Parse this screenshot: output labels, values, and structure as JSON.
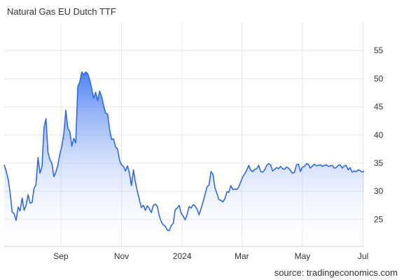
{
  "title": "Natural Gas EU Dutch TTF",
  "source": "source: tradingeconomics.com",
  "colors": {
    "line": "#2f6bdf",
    "area_top": "#2f6bf0",
    "area_bottom": "#ffffff",
    "grid": "#e6e6e6",
    "text": "#333333"
  },
  "chart_data": {
    "type": "area",
    "title": "Natural Gas EU Dutch TTF",
    "xlabel": "",
    "ylabel": "",
    "x_range": [
      "2023-07-06",
      "2024-07-02"
    ],
    "ylim": [
      20.2,
      60
    ],
    "grid": true,
    "legend": "none",
    "y_ticks": [
      25,
      30,
      35,
      40,
      45,
      50,
      55
    ],
    "x_ticks": [
      {
        "label": "Sep",
        "date": "2023-09-01"
      },
      {
        "label": "Nov",
        "date": "2023-11-01"
      },
      {
        "label": "2024",
        "date": "2024-01-01"
      },
      {
        "label": "Mar",
        "date": "2024-03-01"
      },
      {
        "label": "May",
        "date": "2024-05-01"
      },
      {
        "label": "Jul",
        "date": "2024-07-01"
      }
    ],
    "series": [
      {
        "x": [
          "2023-07-06",
          "2023-07-08",
          "2023-07-10",
          "2023-07-12",
          "2023-07-14",
          "2023-07-16",
          "2023-07-18",
          "2023-07-20",
          "2023-07-22",
          "2023-07-24",
          "2023-07-26",
          "2023-07-28",
          "2023-07-30",
          "2023-08-01",
          "2023-08-03",
          "2023-08-05",
          "2023-08-07",
          "2023-08-09",
          "2023-08-11",
          "2023-08-13",
          "2023-08-15",
          "2023-08-17",
          "2023-08-19",
          "2023-08-21",
          "2023-08-23",
          "2023-08-25",
          "2023-08-27",
          "2023-08-29",
          "2023-08-31",
          "2023-09-02",
          "2023-09-04",
          "2023-09-06",
          "2023-09-08",
          "2023-09-10",
          "2023-09-12",
          "2023-09-14",
          "2023-09-16",
          "2023-09-18",
          "2023-09-20",
          "2023-09-22",
          "2023-09-24",
          "2023-09-26",
          "2023-09-28",
          "2023-09-30",
          "2023-10-02",
          "2023-10-04",
          "2023-10-06",
          "2023-10-08",
          "2023-10-10",
          "2023-10-12",
          "2023-10-14",
          "2023-10-16",
          "2023-10-18",
          "2023-10-20",
          "2023-10-22",
          "2023-10-24",
          "2023-10-26",
          "2023-10-28",
          "2023-10-30",
          "2023-11-01",
          "2023-11-03",
          "2023-11-05",
          "2023-11-07",
          "2023-11-09",
          "2023-11-11",
          "2023-11-13",
          "2023-11-15",
          "2023-11-17",
          "2023-11-19",
          "2023-11-21",
          "2023-11-23",
          "2023-11-25",
          "2023-11-27",
          "2023-11-29",
          "2023-12-01",
          "2023-12-03",
          "2023-12-05",
          "2023-12-07",
          "2023-12-09",
          "2023-12-11",
          "2023-12-13",
          "2023-12-15",
          "2023-12-17",
          "2023-12-19",
          "2023-12-21",
          "2023-12-23",
          "2023-12-25",
          "2023-12-27",
          "2023-12-29",
          "2023-12-31",
          "2024-01-02",
          "2024-01-04",
          "2024-01-06",
          "2024-01-08",
          "2024-01-10",
          "2024-01-12",
          "2024-01-14",
          "2024-01-16",
          "2024-01-18",
          "2024-01-20",
          "2024-01-22",
          "2024-01-24",
          "2024-01-26",
          "2024-01-28",
          "2024-01-30",
          "2024-02-01",
          "2024-02-03",
          "2024-02-05",
          "2024-02-07",
          "2024-02-09",
          "2024-02-11",
          "2024-02-13",
          "2024-02-15",
          "2024-02-17",
          "2024-02-19",
          "2024-02-21",
          "2024-02-23",
          "2024-02-25",
          "2024-02-27",
          "2024-02-29",
          "2024-03-02",
          "2024-03-04",
          "2024-03-06",
          "2024-03-08",
          "2024-03-10",
          "2024-03-12",
          "2024-03-14",
          "2024-03-16",
          "2024-03-18",
          "2024-03-20",
          "2024-03-22",
          "2024-03-24",
          "2024-03-26",
          "2024-03-28",
          "2024-03-30",
          "2024-04-01",
          "2024-04-03",
          "2024-04-05",
          "2024-04-07",
          "2024-04-09",
          "2024-04-11",
          "2024-04-13",
          "2024-04-15",
          "2024-04-17",
          "2024-04-19",
          "2024-04-21",
          "2024-04-23",
          "2024-04-25",
          "2024-04-27",
          "2024-04-29",
          "2024-05-01",
          "2024-05-03",
          "2024-05-05",
          "2024-05-07",
          "2024-05-09",
          "2024-05-11",
          "2024-05-13",
          "2024-05-15",
          "2024-05-17",
          "2024-05-19",
          "2024-05-21",
          "2024-05-23",
          "2024-05-25",
          "2024-05-27",
          "2024-05-29",
          "2024-05-31",
          "2024-06-02",
          "2024-06-04",
          "2024-06-06",
          "2024-06-08",
          "2024-06-10",
          "2024-06-12",
          "2024-06-14",
          "2024-06-16",
          "2024-06-18",
          "2024-06-20",
          "2024-06-22",
          "2024-06-24",
          "2024-06-26",
          "2024-06-28",
          "2024-06-30",
          "2024-07-02"
        ],
        "values": [
          34.7,
          33.6,
          32.1,
          29.7,
          26.3,
          26.0,
          24.8,
          27.2,
          26.5,
          28.8,
          26.6,
          27.5,
          29.4,
          27.9,
          28.0,
          30.5,
          31.2,
          36.0,
          33.2,
          34.4,
          41.3,
          42.9,
          36.9,
          35.6,
          34.9,
          32.6,
          33.4,
          34.7,
          36.6,
          38.1,
          40.3,
          44.4,
          41.2,
          40.6,
          38.0,
          39.4,
          38.6,
          48.6,
          49.4,
          51.2,
          50.7,
          51.2,
          50.9,
          49.8,
          48.2,
          46.5,
          47.6,
          46.1,
          47.8,
          46.8,
          45.2,
          43.9,
          43.7,
          41.0,
          39.2,
          39.3,
          37.9,
          37.5,
          35.5,
          34.7,
          34.4,
          33.6,
          34.5,
          33.2,
          31.0,
          33.8,
          31.6,
          29.9,
          28.5,
          27.1,
          27.5,
          26.6,
          27.4,
          26.9,
          26.2,
          27.5,
          27.7,
          27.3,
          25.6,
          24.6,
          24.0,
          23.8,
          23.1,
          23.0,
          23.9,
          24.3,
          26.7,
          27.0,
          27.5,
          26.1,
          25.6,
          24.9,
          25.9,
          27.3,
          27.0,
          27.6,
          27.4,
          26.8,
          25.8,
          26.9,
          28.1,
          29.4,
          30.8,
          31.1,
          33.5,
          33.0,
          30.6,
          29.6,
          28.5,
          28.4,
          28.1,
          28.7,
          29.9,
          29.8,
          31.0,
          30.3,
          30.4,
          30.3,
          30.8,
          31.7,
          32.6,
          33.1,
          33.8,
          34.6,
          33.7,
          33.5,
          33.9,
          34.0,
          34.6,
          33.5,
          33.4,
          33.8,
          34.6,
          34.9,
          34.7,
          33.6,
          33.9,
          34.2,
          34.0,
          34.4,
          34.0,
          33.9,
          34.3,
          34.1,
          33.7,
          33.2,
          33.4,
          34.7,
          34.8,
          33.5,
          34.3,
          34.4,
          34.9,
          34.8,
          34.1,
          34.5,
          34.8,
          34.5,
          34.6,
          34.7,
          34.4,
          34.6,
          34.7,
          34.4,
          34.5,
          34.6,
          34.1,
          34.2,
          34.6,
          34.7,
          34.1,
          34.5,
          34.6,
          33.8,
          34.2,
          33.4,
          33.6,
          33.5,
          33.8,
          33.7,
          33.4,
          33.6
        ]
      }
    ]
  }
}
